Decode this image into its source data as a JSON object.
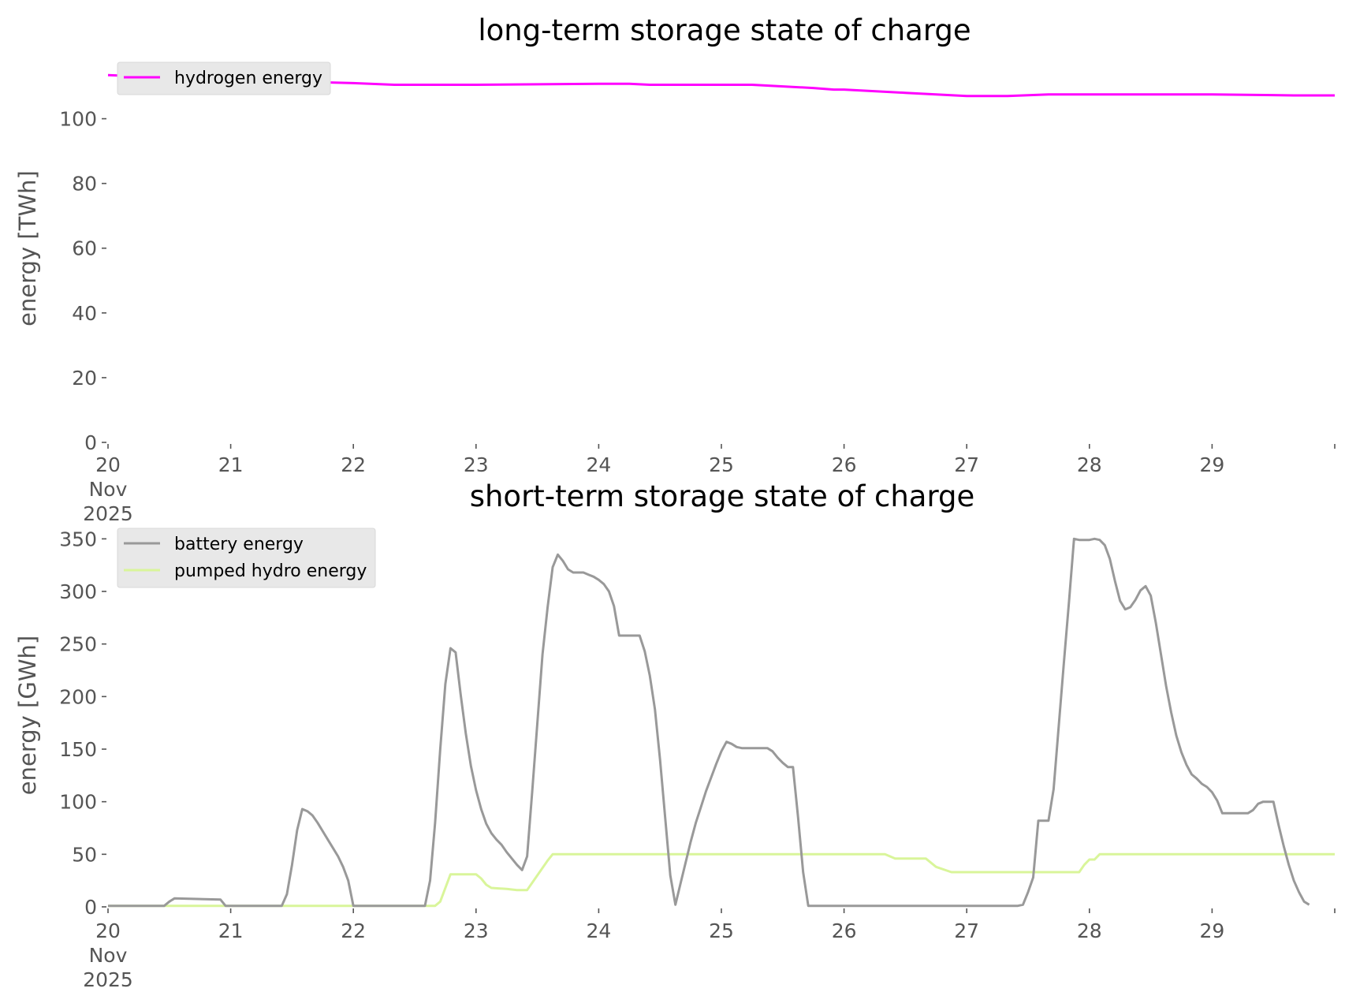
{
  "chart_data": [
    {
      "type": "line",
      "title": "long-term storage state of charge",
      "xlabel": "",
      "ylabel": "energy [TWh]",
      "xlim": [
        "2025-11-20T00:00",
        "2025-11-30T00:00"
      ],
      "ylim": [
        0,
        115
      ],
      "yticks": [
        0,
        20,
        40,
        60,
        80,
        100
      ],
      "xtick_labels": [
        "20\nNov\n2025",
        "21",
        "22",
        "23",
        "24",
        "25",
        "26",
        "27",
        "28",
        "29"
      ],
      "grid": false,
      "legend_position": "top-left",
      "series": [
        {
          "name": "hydrogen energy",
          "color": "#ff00ff",
          "points": [
            [
              "2025-11-20T00:00",
              113.5
            ],
            [
              "2025-11-21T00:00",
              112
            ],
            [
              "2025-11-22T00:00",
              111
            ],
            [
              "2025-11-22T08:00",
              110.5
            ],
            [
              "2025-11-23T00:00",
              110.5
            ],
            [
              "2025-11-24T00:00",
              110.8
            ],
            [
              "2025-11-24T06:00",
              110.8
            ],
            [
              "2025-11-24T10:00",
              110.5
            ],
            [
              "2025-11-25T06:00",
              110.5
            ],
            [
              "2025-11-25T18:00",
              109.5
            ],
            [
              "2025-11-25T22:00",
              109
            ],
            [
              "2025-11-26T00:00",
              109
            ],
            [
              "2025-11-26T12:00",
              108
            ],
            [
              "2025-11-27T00:00",
              107
            ],
            [
              "2025-11-27T08:00",
              107
            ],
            [
              "2025-11-27T16:00",
              107.5
            ],
            [
              "2025-11-28T00:00",
              107.5
            ],
            [
              "2025-11-29T00:00",
              107.5
            ],
            [
              "2025-11-29T12:00",
              107.3
            ],
            [
              "2025-11-29T16:00",
              107.2
            ],
            [
              "2025-11-30T00:00",
              107.2
            ]
          ]
        }
      ]
    },
    {
      "type": "line",
      "title": "short-term storage state of charge",
      "xlabel": "",
      "ylabel": "energy [GWh]",
      "xlim": [
        "2025-11-20T00:00",
        "2025-11-30T00:00"
      ],
      "ylim": [
        0,
        360
      ],
      "yticks": [
        0,
        50,
        100,
        150,
        200,
        250,
        300,
        350
      ],
      "xtick_labels": [
        "20\nNov\n2025",
        "21",
        "22",
        "23",
        "24",
        "25",
        "26",
        "27",
        "28",
        "29"
      ],
      "grid": false,
      "legend_position": "top-left",
      "series": [
        {
          "name": "battery energy",
          "color": "#999999",
          "points": [
            [
              "2025-11-20T00:00",
              1
            ],
            [
              "2025-11-20T11:00",
              1
            ],
            [
              "2025-11-20T12:00",
              5
            ],
            [
              "2025-11-20T13:00",
              8
            ],
            [
              "2025-11-20T22:00",
              7
            ],
            [
              "2025-11-20T23:00",
              1
            ],
            [
              "2025-11-21T10:00",
              1
            ],
            [
              "2025-11-21T11:00",
              12
            ],
            [
              "2025-11-21T12:00",
              40
            ],
            [
              "2025-11-21T13:00",
              73
            ],
            [
              "2025-11-21T14:00",
              93
            ],
            [
              "2025-11-21T15:00",
              91
            ],
            [
              "2025-11-21T16:00",
              87
            ],
            [
              "2025-11-21T17:00",
              80
            ],
            [
              "2025-11-21T18:00",
              72
            ],
            [
              "2025-11-21T19:00",
              64
            ],
            [
              "2025-11-21T20:00",
              56
            ],
            [
              "2025-11-21T21:00",
              48
            ],
            [
              "2025-11-21T22:00",
              38
            ],
            [
              "2025-11-21T23:00",
              25
            ],
            [
              "2025-11-22T00:00",
              1
            ],
            [
              "2025-11-22T14:00",
              1
            ],
            [
              "2025-11-22T15:00",
              25
            ],
            [
              "2025-11-22T16:00",
              80
            ],
            [
              "2025-11-22T17:00",
              150
            ],
            [
              "2025-11-22T18:00",
              212
            ],
            [
              "2025-11-22T19:00",
              246
            ],
            [
              "2025-11-22T20:00",
              242
            ],
            [
              "2025-11-22T21:00",
              202
            ],
            [
              "2025-11-22T22:00",
              165
            ],
            [
              "2025-11-22T23:00",
              134
            ],
            [
              "2025-11-23T00:00",
              111
            ],
            [
              "2025-11-23T01:00",
              93
            ],
            [
              "2025-11-23T02:00",
              79
            ],
            [
              "2025-11-23T03:00",
              70
            ],
            [
              "2025-11-23T04:00",
              64
            ],
            [
              "2025-11-23T05:00",
              59
            ],
            [
              "2025-11-23T06:00",
              52
            ],
            [
              "2025-11-23T07:00",
              46
            ],
            [
              "2025-11-23T08:00",
              40
            ],
            [
              "2025-11-23T09:00",
              35
            ],
            [
              "2025-11-23T10:00",
              48
            ],
            [
              "2025-11-23T11:00",
              110
            ],
            [
              "2025-11-23T12:00",
              175
            ],
            [
              "2025-11-23T13:00",
              240
            ],
            [
              "2025-11-23T14:00",
              285
            ],
            [
              "2025-11-23T15:00",
              323
            ],
            [
              "2025-11-23T16:00",
              335
            ],
            [
              "2025-11-23T17:00",
              329
            ],
            [
              "2025-11-23T18:00",
              321
            ],
            [
              "2025-11-23T19:00",
              318
            ],
            [
              "2025-11-23T20:00",
              318
            ],
            [
              "2025-11-23T21:00",
              318
            ],
            [
              "2025-11-23T22:00",
              316
            ],
            [
              "2025-11-23T23:00",
              314
            ],
            [
              "2025-11-24T00:00",
              311
            ],
            [
              "2025-11-24T01:00",
              307
            ],
            [
              "2025-11-24T02:00",
              300
            ],
            [
              "2025-11-24T03:00",
              286
            ],
            [
              "2025-11-24T04:00",
              258
            ],
            [
              "2025-11-24T08:00",
              258
            ],
            [
              "2025-11-24T09:00",
              243
            ],
            [
              "2025-11-24T10:00",
              220
            ],
            [
              "2025-11-24T11:00",
              188
            ],
            [
              "2025-11-24T12:00",
              140
            ],
            [
              "2025-11-24T13:00",
              85
            ],
            [
              "2025-11-24T14:00",
              30
            ],
            [
              "2025-11-24T15:00",
              2
            ],
            [
              "2025-11-24T16:00",
              22
            ],
            [
              "2025-11-24T17:00",
              42
            ],
            [
              "2025-11-24T18:00",
              62
            ],
            [
              "2025-11-24T19:00",
              80
            ],
            [
              "2025-11-24T20:00",
              95
            ],
            [
              "2025-11-24T21:00",
              110
            ],
            [
              "2025-11-24T22:00",
              123
            ],
            [
              "2025-11-24T23:00",
              136
            ],
            [
              "2025-11-25T00:00",
              148
            ],
            [
              "2025-11-25T01:00",
              157
            ],
            [
              "2025-11-25T02:00",
              155
            ],
            [
              "2025-11-25T03:00",
              152
            ],
            [
              "2025-11-25T04:00",
              151
            ],
            [
              "2025-11-25T09:00",
              151
            ],
            [
              "2025-11-25T10:00",
              148
            ],
            [
              "2025-11-25T11:00",
              142
            ],
            [
              "2025-11-25T12:00",
              137
            ],
            [
              "2025-11-25T13:00",
              133
            ],
            [
              "2025-11-25T14:00",
              133
            ],
            [
              "2025-11-25T15:00",
              85
            ],
            [
              "2025-11-25T16:00",
              33
            ],
            [
              "2025-11-25T17:00",
              1
            ],
            [
              "2025-11-27T10:00",
              1
            ],
            [
              "2025-11-27T11:00",
              2
            ],
            [
              "2025-11-27T12:00",
              14
            ],
            [
              "2025-11-27T13:00",
              28
            ],
            [
              "2025-11-27T14:00",
              82
            ],
            [
              "2025-11-27T15:00",
              82
            ],
            [
              "2025-11-27T16:00",
              82
            ],
            [
              "2025-11-27T17:00",
              112
            ],
            [
              "2025-11-27T18:00",
              172
            ],
            [
              "2025-11-27T19:00",
              232
            ],
            [
              "2025-11-27T20:00",
              290
            ],
            [
              "2025-11-27T21:00",
              350
            ],
            [
              "2025-11-27T22:00",
              349
            ],
            [
              "2025-11-27T23:00",
              349
            ],
            [
              "2025-11-28T00:00",
              349
            ],
            [
              "2025-11-28T01:00",
              350
            ],
            [
              "2025-11-28T02:00",
              349
            ],
            [
              "2025-11-28T03:00",
              344
            ],
            [
              "2025-11-28T04:00",
              331
            ],
            [
              "2025-11-28T05:00",
              310
            ],
            [
              "2025-11-28T06:00",
              291
            ],
            [
              "2025-11-28T07:00",
              283
            ],
            [
              "2025-11-28T08:00",
              285
            ],
            [
              "2025-11-28T09:00",
              292
            ],
            [
              "2025-11-28T10:00",
              301
            ],
            [
              "2025-11-28T11:00",
              305
            ],
            [
              "2025-11-28T12:00",
              296
            ],
            [
              "2025-11-28T13:00",
              270
            ],
            [
              "2025-11-28T14:00",
              240
            ],
            [
              "2025-11-28T15:00",
              210
            ],
            [
              "2025-11-28T16:00",
              185
            ],
            [
              "2025-11-28T17:00",
              163
            ],
            [
              "2025-11-28T18:00",
              147
            ],
            [
              "2025-11-28T19:00",
              135
            ],
            [
              "2025-11-28T20:00",
              126
            ],
            [
              "2025-11-28T21:00",
              122
            ],
            [
              "2025-11-28T22:00",
              117
            ],
            [
              "2025-11-28T23:00",
              114
            ],
            [
              "2025-11-29T00:00",
              109
            ],
            [
              "2025-11-29T01:00",
              101
            ],
            [
              "2025-11-29T02:00",
              89
            ],
            [
              "2025-11-29T07:00",
              89
            ],
            [
              "2025-11-29T08:00",
              92
            ],
            [
              "2025-11-29T09:00",
              98
            ],
            [
              "2025-11-29T10:00",
              100
            ],
            [
              "2025-11-29T12:00",
              100
            ],
            [
              "2025-11-29T13:00",
              78
            ],
            [
              "2025-11-29T14:00",
              58
            ],
            [
              "2025-11-29T15:00",
              40
            ],
            [
              "2025-11-29T16:00",
              25
            ],
            [
              "2025-11-29T17:00",
              14
            ],
            [
              "2025-11-29T18:00",
              5
            ],
            [
              "2025-11-29T19:00",
              2
            ]
          ]
        },
        {
          "name": "pumped hydro energy",
          "color": "#d9f59a",
          "points": [
            [
              "2025-11-20T00:00",
              1
            ],
            [
              "2025-11-22T16:00",
              1
            ],
            [
              "2025-11-22T17:00",
              5
            ],
            [
              "2025-11-22T18:00",
              18
            ],
            [
              "2025-11-22T19:00",
              31
            ],
            [
              "2025-11-23T00:00",
              31
            ],
            [
              "2025-11-23T01:00",
              27
            ],
            [
              "2025-11-23T02:00",
              21
            ],
            [
              "2025-11-23T03:00",
              18
            ],
            [
              "2025-11-23T06:00",
              17
            ],
            [
              "2025-11-23T08:00",
              16
            ],
            [
              "2025-11-23T10:00",
              16
            ],
            [
              "2025-11-23T12:00",
              30
            ],
            [
              "2025-11-23T14:00",
              44
            ],
            [
              "2025-11-23T15:00",
              50
            ],
            [
              "2025-11-26T08:00",
              50
            ],
            [
              "2025-11-26T10:00",
              46
            ],
            [
              "2025-11-26T16:00",
              46
            ],
            [
              "2025-11-26T18:00",
              38
            ],
            [
              "2025-11-26T21:00",
              33
            ],
            [
              "2025-11-27T22:00",
              33
            ],
            [
              "2025-11-27T23:00",
              40
            ],
            [
              "2025-11-28T00:00",
              45
            ],
            [
              "2025-11-28T01:00",
              45
            ],
            [
              "2025-11-28T02:00",
              50
            ],
            [
              "2025-11-30T00:00",
              50
            ]
          ]
        }
      ]
    }
  ]
}
